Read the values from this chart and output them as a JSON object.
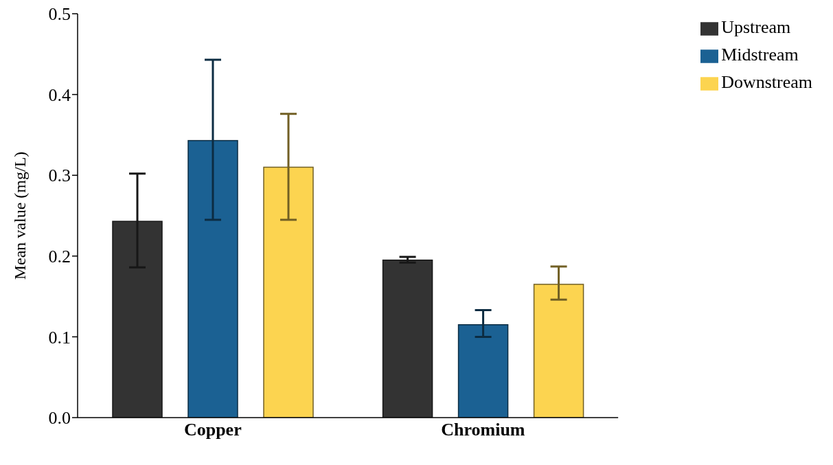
{
  "chart_data": {
    "type": "bar",
    "ylabel": "Mean value (mg/L)",
    "categories": [
      "Copper",
      "Chromium"
    ],
    "series": [
      {
        "name": "Upstream",
        "color": "#333333",
        "values": [
          0.243,
          0.195
        ],
        "errors": [
          [
            0.186,
            0.302
          ],
          [
            0.192,
            0.199
          ]
        ]
      },
      {
        "name": "Midstream",
        "color": "#1b6193",
        "values": [
          0.343,
          0.115
        ],
        "errors": [
          [
            0.245,
            0.443
          ],
          [
            0.1,
            0.133
          ]
        ]
      },
      {
        "name": "Downstream",
        "color": "#fcd450",
        "values": [
          0.31,
          0.165
        ],
        "errors": [
          [
            0.245,
            0.376
          ],
          [
            0.146,
            0.187
          ]
        ]
      }
    ],
    "ylim": [
      0,
      0.5
    ],
    "yticks": [
      {
        "value": 0,
        "label": "0.0"
      },
      0.1,
      0.2,
      0.3,
      0.4,
      0.5
    ],
    "legend": "top right"
  }
}
